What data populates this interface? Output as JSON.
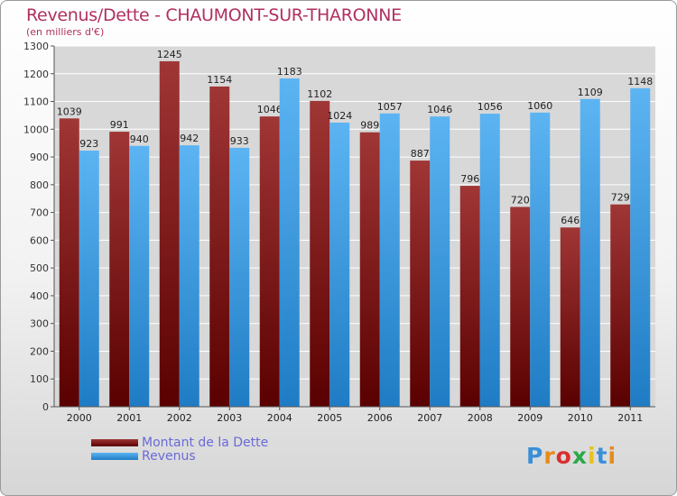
{
  "logo": {
    "text": "Proxiti"
  },
  "chart_data": {
    "type": "bar",
    "title": "Revenus/Dette - CHAUMONT-SUR-THARONNE",
    "subtitle": "(en milliers d'€)",
    "categories": [
      "2000",
      "2001",
      "2002",
      "2003",
      "2004",
      "2005",
      "2006",
      "2007",
      "2008",
      "2009",
      "2010",
      "2011"
    ],
    "series": [
      {
        "name": "Montant de la Dette",
        "color": "#7a1a1a",
        "values": [
          1039,
          991,
          1245,
          1154,
          1046,
          1102,
          989,
          887,
          796,
          720,
          646,
          729
        ],
        "labels": [
          "1039",
          "991",
          "1245",
          "1154",
          "1046",
          "1102",
          "989",
          "887",
          "796",
          "720",
          "646",
          "729"
        ]
      },
      {
        "name": "Revenus",
        "color": "#3a9be0",
        "values": [
          923,
          940,
          942,
          933,
          1183,
          1024,
          1057,
          1046,
          1056,
          1060,
          1109,
          1148
        ],
        "labels": [
          "923",
          "940",
          "942",
          "933",
          "1183",
          "1024",
          "1057",
          "1046",
          "1056",
          "1060",
          "1109",
          "1148"
        ]
      }
    ],
    "ylim": [
      0,
      1300
    ],
    "yticks": [
      0,
      100,
      200,
      300,
      400,
      500,
      600,
      700,
      800,
      900,
      1000,
      1100,
      1200,
      1300
    ],
    "grid": true,
    "legend": "bottom-left"
  }
}
